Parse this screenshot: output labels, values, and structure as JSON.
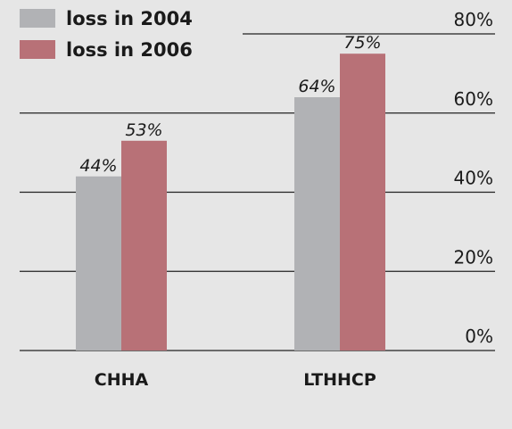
{
  "chart_data": {
    "type": "bar",
    "categories": [
      "CHHA",
      "LTHHCP"
    ],
    "series": [
      {
        "name": "loss in 2004",
        "color": "#b1b2b5",
        "values": [
          44,
          64
        ],
        "value_labels": [
          "44%",
          "64%"
        ]
      },
      {
        "name": "loss in 2006",
        "color": "#b87177",
        "values": [
          53,
          75
        ],
        "value_labels": [
          "53%",
          "75%"
        ]
      }
    ],
    "ylim": [
      0,
      80
    ],
    "yticks": [
      {
        "value": 0,
        "label": "0%"
      },
      {
        "value": 20,
        "label": "20%"
      },
      {
        "value": 40,
        "label": "40%"
      },
      {
        "value": 60,
        "label": "60%"
      },
      {
        "value": 80,
        "label": "80%"
      }
    ],
    "grid": true,
    "legend": "top-left"
  }
}
